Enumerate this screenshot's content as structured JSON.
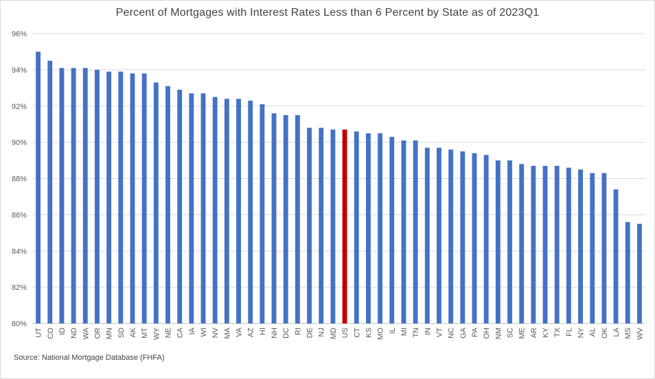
{
  "chart_data": {
    "type": "bar",
    "title": "Percent of Mortgages with Interest Rates Less than 6 Percent by State as of 2023Q1",
    "source": "Source: National Mortgage Database (FHFA)",
    "xlabel": "",
    "ylabel": "",
    "ylim": [
      80,
      96
    ],
    "yticks": [
      "80%",
      "82%",
      "84%",
      "86%",
      "88%",
      "90%",
      "92%",
      "94%",
      "96%"
    ],
    "grid": true,
    "bar_color": "#4472c4",
    "highlight_color": "#c00000",
    "highlight_category": "US",
    "categories": [
      "UT",
      "CO",
      "ID",
      "ND",
      "WA",
      "OR",
      "MN",
      "SD",
      "AK",
      "MT",
      "WY",
      "NE",
      "CA",
      "IA",
      "WI",
      "NV",
      "MA",
      "VA",
      "AZ",
      "HI",
      "NH",
      "DC",
      "RI",
      "DE",
      "NJ",
      "MD",
      "US",
      "CT",
      "KS",
      "MO",
      "IL",
      "MI",
      "TN",
      "IN",
      "VT",
      "NC",
      "GA",
      "PA",
      "OH",
      "NM",
      "SC",
      "ME",
      "AR",
      "KY",
      "TX",
      "FL",
      "NY",
      "AL",
      "OK",
      "LA",
      "MS",
      "WV"
    ],
    "values": [
      95.0,
      94.5,
      94.1,
      94.1,
      94.1,
      94.0,
      93.9,
      93.9,
      93.8,
      93.8,
      93.3,
      93.1,
      92.9,
      92.7,
      92.7,
      92.5,
      92.4,
      92.4,
      92.3,
      92.1,
      91.6,
      91.5,
      91.5,
      90.8,
      90.8,
      90.7,
      90.7,
      90.6,
      90.5,
      90.5,
      90.3,
      90.1,
      90.1,
      89.7,
      89.7,
      89.6,
      89.5,
      89.4,
      89.3,
      89.0,
      89.0,
      88.8,
      88.7,
      88.7,
      88.7,
      88.6,
      88.5,
      88.3,
      88.3,
      87.4,
      85.6,
      85.5
    ]
  }
}
